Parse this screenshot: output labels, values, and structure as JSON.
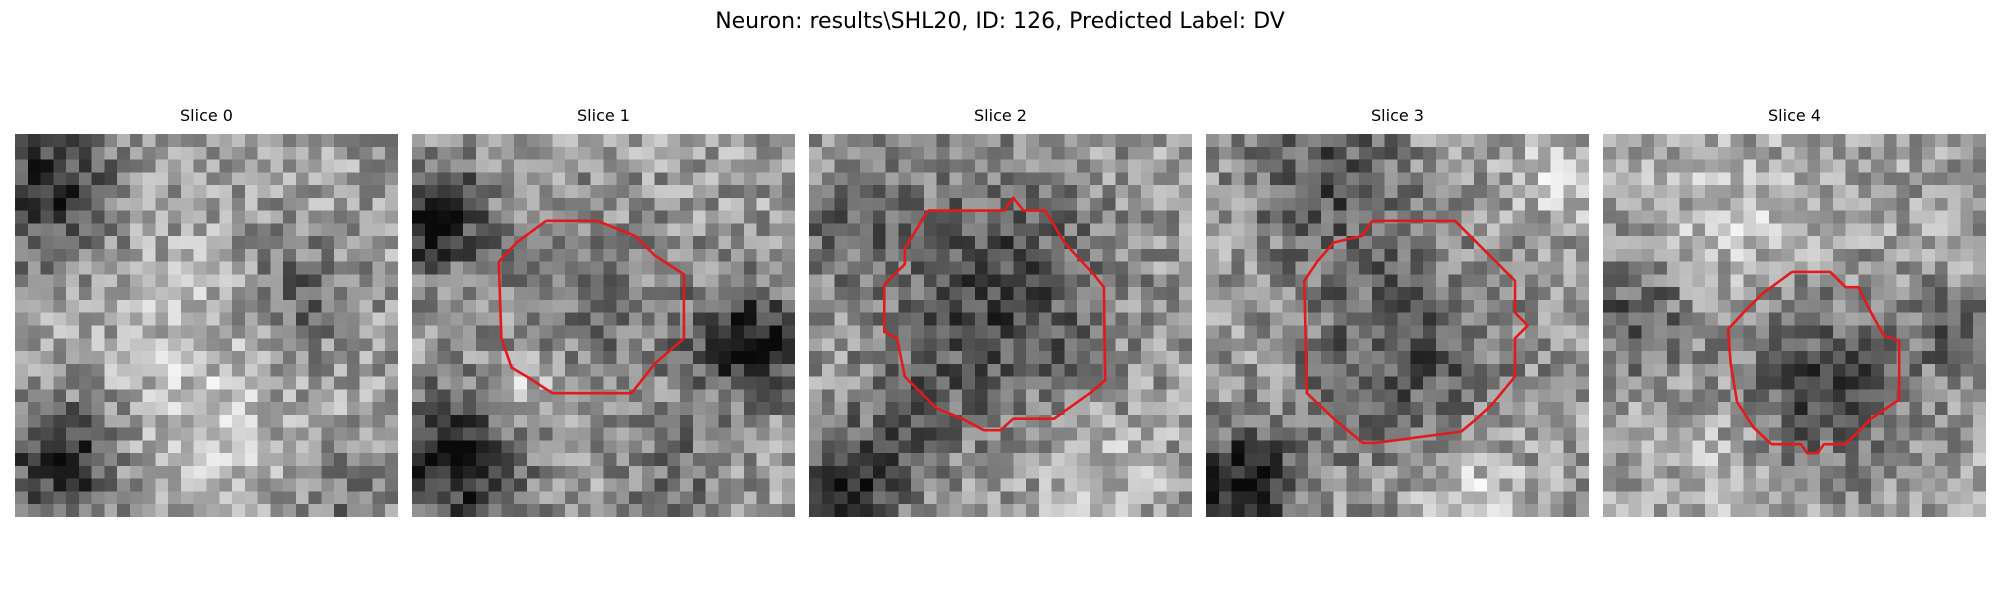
{
  "figure": {
    "title": "Neuron: results\\SHL20, ID: 126, Predicted Label: DV"
  },
  "panels": [
    {
      "title": "Slice 0",
      "has_contour": false,
      "contour_shape": "none"
    },
    {
      "title": "Slice 1",
      "has_contour": true,
      "contour_shape": "polygon"
    },
    {
      "title": "Slice 2",
      "has_contour": true,
      "contour_shape": "polygon"
    },
    {
      "title": "Slice 3",
      "has_contour": true,
      "contour_shape": "polygon"
    },
    {
      "title": "Slice 4",
      "has_contour": true,
      "contour_shape": "polygon"
    }
  ],
  "colors": {
    "contour": "#e31a1c",
    "background": "#ffffff"
  },
  "image_style": "grayscale microscopy patch (pixelated)"
}
